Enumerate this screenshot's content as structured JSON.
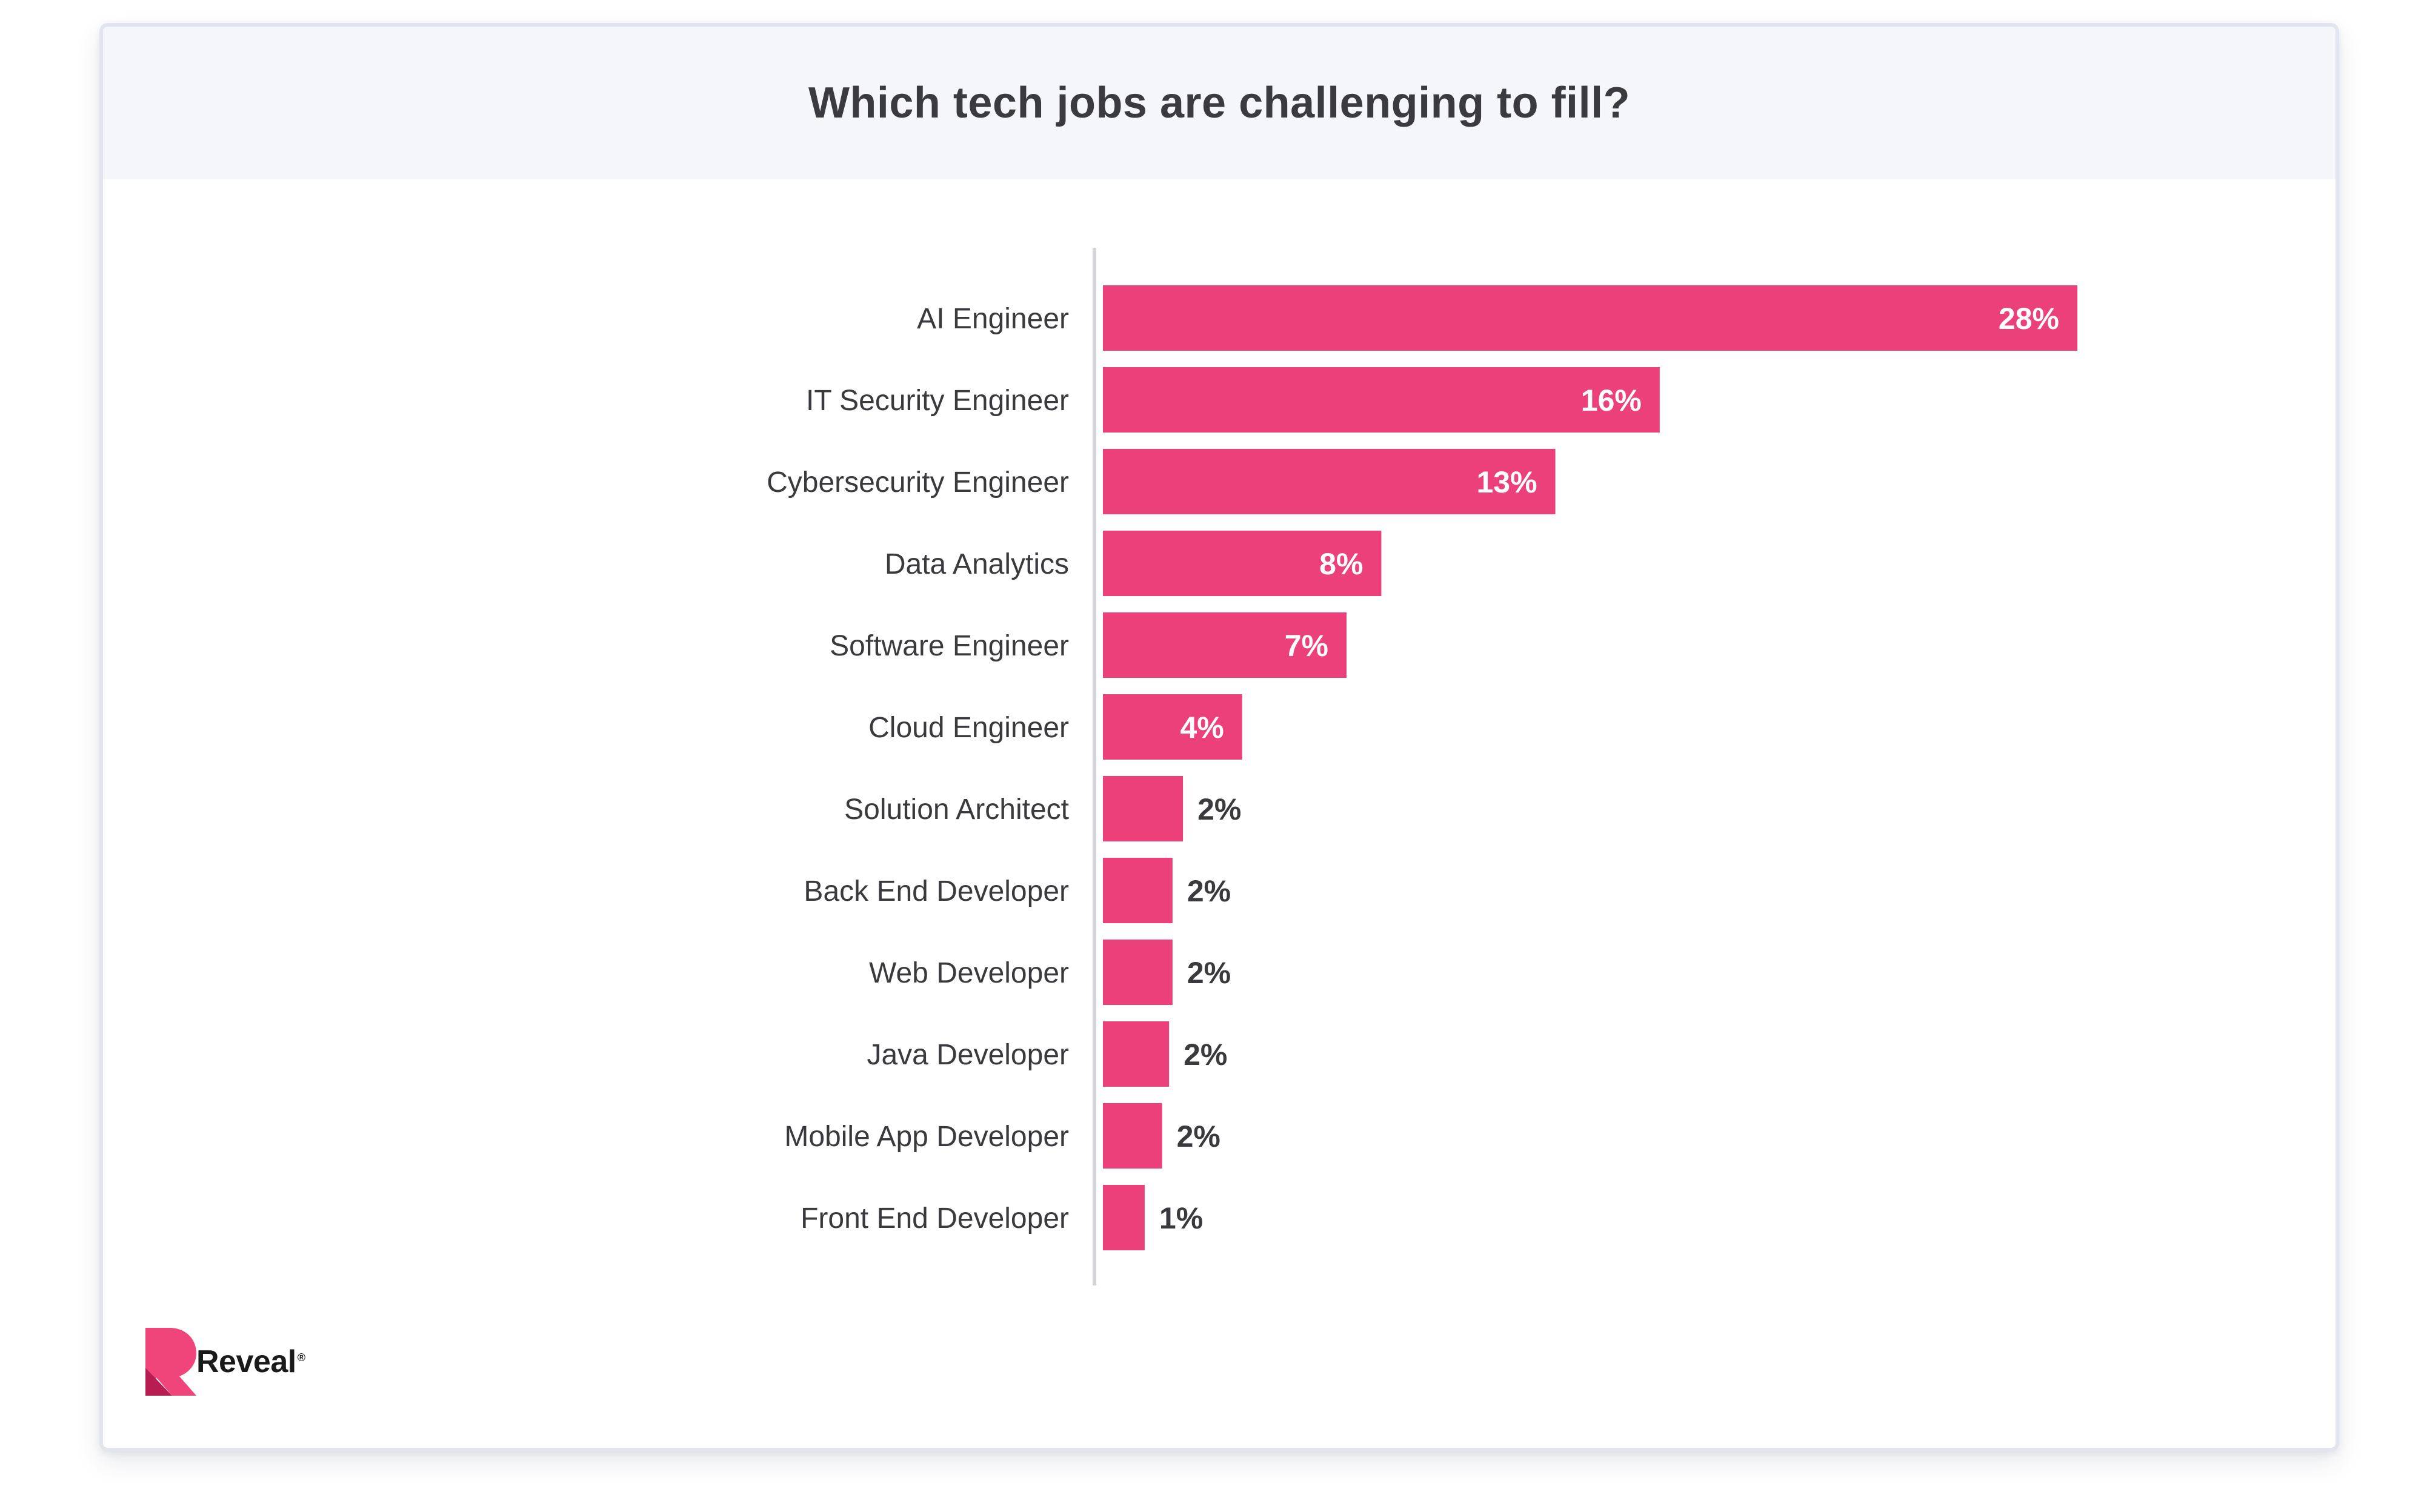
{
  "chart_data": {
    "type": "bar",
    "orientation": "horizontal",
    "title": "Which tech jobs are challenging to fill?",
    "xlabel": "",
    "ylabel": "",
    "categories": [
      "AI Engineer",
      "IT Security Engineer",
      "Cybersecurity Engineer",
      "Data Analytics",
      "Software Engineer",
      "Cloud Engineer",
      "Solution Architect",
      "Back End Developer",
      "Web Developer",
      "Java Developer",
      "Mobile App Developer",
      "Front End Developer"
    ],
    "values": [
      28,
      16,
      13,
      8,
      7,
      4,
      2.3,
      2,
      2,
      1.9,
      1.7,
      1.2
    ],
    "value_labels": [
      "28%",
      "16%",
      "13%",
      "8%",
      "7%",
      "4%",
      "2%",
      "2%",
      "2%",
      "2%",
      "2%",
      "1%"
    ],
    "xlim": [
      0,
      28
    ],
    "bar_color": "#ec407a",
    "grid": false
  },
  "branding": {
    "logo_text": "Reveal",
    "logo_mark": "®",
    "logo_color_top": "#f0457a",
    "logo_color_bottom": "#b81d52"
  }
}
